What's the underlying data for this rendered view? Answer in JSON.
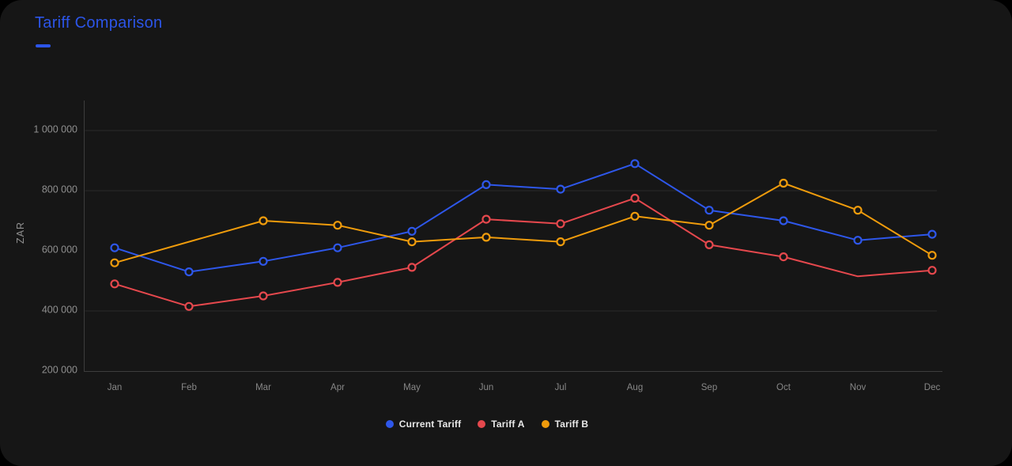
{
  "card": {
    "title": "Tariff Comparison",
    "accent_color": "#2c55e8",
    "background_color": "#161616"
  },
  "chart_data": {
    "type": "line",
    "title": "Tariff Comparison",
    "xlabel": "",
    "ylabel": "ZAR",
    "legend_position": "bottom",
    "grid": true,
    "categories": [
      "Jan",
      "Feb",
      "Mar",
      "Apr",
      "May",
      "Jun",
      "Jul",
      "Aug",
      "Sep",
      "Oct",
      "Nov",
      "Dec"
    ],
    "y_axis": {
      "min": 200000,
      "max": 1000000,
      "tick_interval": 200000,
      "ticks": [
        {
          "label": "1 000 000",
          "value": 1000000
        },
        {
          "label": "800 000",
          "value": 800000
        },
        {
          "label": "600 000",
          "value": 600000
        },
        {
          "label": "400 000",
          "value": 400000
        },
        {
          "label": "200 000",
          "value": 200000
        }
      ],
      "gridline_values": [
        1000000,
        800000,
        400000
      ]
    },
    "series": [
      {
        "name": "Current Tariff",
        "color": "#2e57ea",
        "values": [
          610000,
          530000,
          565000,
          610000,
          665000,
          820000,
          805000,
          890000,
          735000,
          700000,
          635000,
          655000
        ],
        "hidden_markers": []
      },
      {
        "name": "Tariff A",
        "color": "#e5484d",
        "values": [
          490000,
          415000,
          450000,
          495000,
          545000,
          705000,
          690000,
          775000,
          620000,
          580000,
          515000,
          535000
        ],
        "hidden_markers": [
          10
        ]
      },
      {
        "name": "Tariff B",
        "color": "#f09c0c",
        "values": [
          560000,
          null,
          700000,
          685000,
          630000,
          645000,
          630000,
          715000,
          685000,
          825000,
          735000,
          585000
        ],
        "hidden_markers": []
      }
    ]
  },
  "legend": {
    "items": [
      {
        "label": "Current Tariff",
        "color": "#2e57ea"
      },
      {
        "label": "Tariff A",
        "color": "#e5484d"
      },
      {
        "label": "Tariff B",
        "color": "#f09c0c"
      }
    ]
  }
}
